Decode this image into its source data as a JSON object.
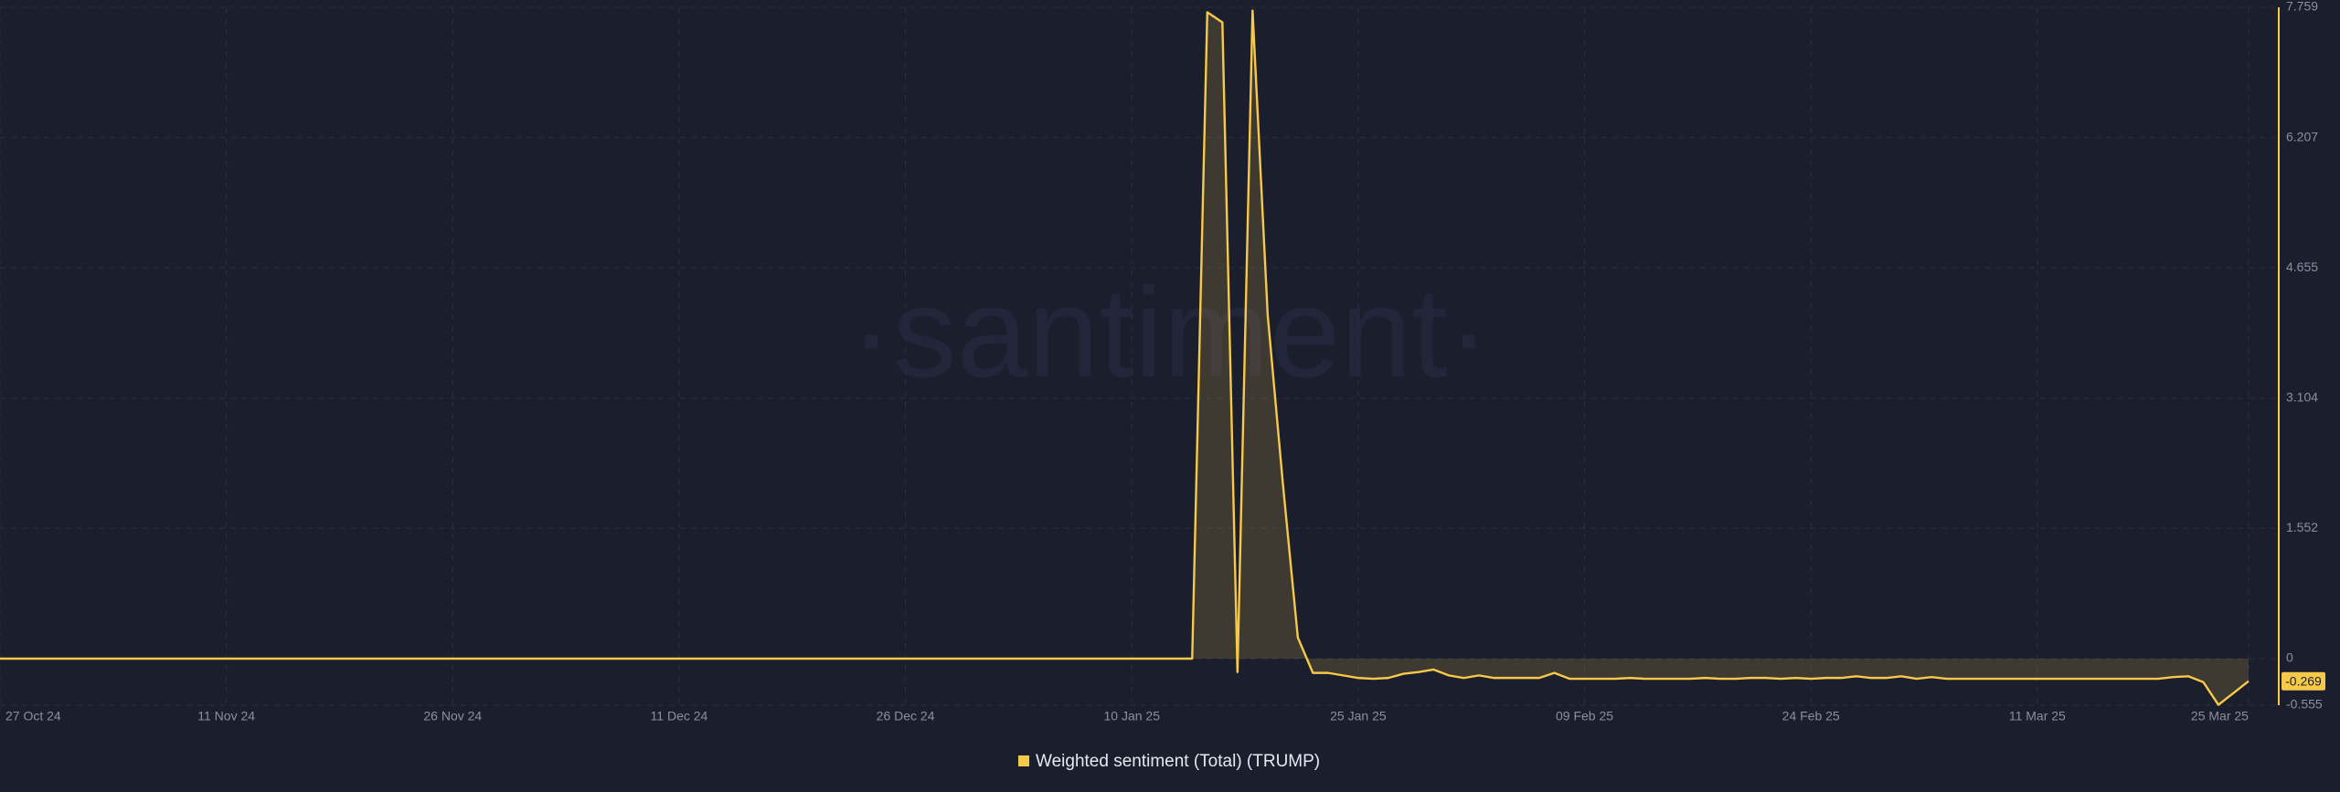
{
  "chart_data": {
    "type": "area",
    "watermark": "·santiment·",
    "xlim": [
      "2024-10-27",
      "2025-03-27"
    ],
    "ylim": [
      -0.555,
      7.759
    ],
    "yticks": [
      -0.555,
      0,
      1.552,
      3.104,
      4.655,
      6.207,
      7.759
    ],
    "xticks": [
      {
        "value": "2024-10-27",
        "label": "27 Oct 24"
      },
      {
        "value": "2024-11-11",
        "label": "11 Nov 24"
      },
      {
        "value": "2024-11-26",
        "label": "26 Nov 24"
      },
      {
        "value": "2024-12-11",
        "label": "11 Dec 24"
      },
      {
        "value": "2024-12-26",
        "label": "26 Dec 24"
      },
      {
        "value": "2025-01-10",
        "label": "10 Jan 25"
      },
      {
        "value": "2025-01-25",
        "label": "25 Jan 25"
      },
      {
        "value": "2025-02-09",
        "label": "09 Feb 25"
      },
      {
        "value": "2025-02-24",
        "label": "24 Feb 25"
      },
      {
        "value": "2025-03-11",
        "label": "11 Mar 25"
      },
      {
        "value": "2025-03-25",
        "label": "25 Mar 25"
      }
    ],
    "grid": true,
    "current_value": -0.269,
    "x": [
      "2024-10-27",
      "2025-01-14",
      "2025-01-15",
      "2025-01-16",
      "2025-01-17",
      "2025-01-18",
      "2025-01-19",
      "2025-01-20",
      "2025-01-21",
      "2025-01-22",
      "2025-01-23",
      "2025-01-24",
      "2025-01-25",
      "2025-01-26",
      "2025-01-27",
      "2025-01-28",
      "2025-01-29",
      "2025-01-30",
      "2025-01-31",
      "2025-02-01",
      "2025-02-02",
      "2025-02-03",
      "2025-02-04",
      "2025-02-05",
      "2025-02-06",
      "2025-02-07",
      "2025-02-08",
      "2025-02-09",
      "2025-02-10",
      "2025-02-11",
      "2025-02-12",
      "2025-02-13",
      "2025-02-14",
      "2025-02-15",
      "2025-02-16",
      "2025-02-17",
      "2025-02-18",
      "2025-02-19",
      "2025-02-20",
      "2025-02-21",
      "2025-02-22",
      "2025-02-23",
      "2025-02-24",
      "2025-02-25",
      "2025-02-26",
      "2025-02-27",
      "2025-02-28",
      "2025-03-01",
      "2025-03-02",
      "2025-03-03",
      "2025-03-04",
      "2025-03-05",
      "2025-03-06",
      "2025-03-07",
      "2025-03-08",
      "2025-03-09",
      "2025-03-10",
      "2025-03-11",
      "2025-03-12",
      "2025-03-13",
      "2025-03-14",
      "2025-03-15",
      "2025-03-16",
      "2025-03-17",
      "2025-03-18",
      "2025-03-19",
      "2025-03-20",
      "2025-03-21",
      "2025-03-22",
      "2025-03-23",
      "2025-03-24",
      "2025-03-25"
    ],
    "series": [
      {
        "name": "Weighted sentiment (Total) (TRUMP)",
        "color": "#f7c948",
        "values": [
          0,
          0,
          7.7,
          7.58,
          -0.16,
          7.72,
          4.1,
          2.1,
          0.25,
          -0.17,
          -0.17,
          -0.2,
          -0.23,
          -0.24,
          -0.23,
          -0.18,
          -0.16,
          -0.13,
          -0.2,
          -0.23,
          -0.2,
          -0.23,
          -0.23,
          -0.23,
          -0.23,
          -0.17,
          -0.24,
          -0.24,
          -0.24,
          -0.24,
          -0.23,
          -0.24,
          -0.24,
          -0.24,
          -0.24,
          -0.23,
          -0.24,
          -0.24,
          -0.23,
          -0.23,
          -0.24,
          -0.23,
          -0.24,
          -0.23,
          -0.23,
          -0.21,
          -0.23,
          -0.23,
          -0.21,
          -0.24,
          -0.22,
          -0.24,
          -0.24,
          -0.24,
          -0.24,
          -0.24,
          -0.24,
          -0.24,
          -0.24,
          -0.24,
          -0.24,
          -0.24,
          -0.24,
          -0.24,
          -0.24,
          -0.24,
          -0.22,
          -0.21,
          -0.28,
          -0.55,
          -0.41,
          -0.269
        ]
      }
    ]
  }
}
